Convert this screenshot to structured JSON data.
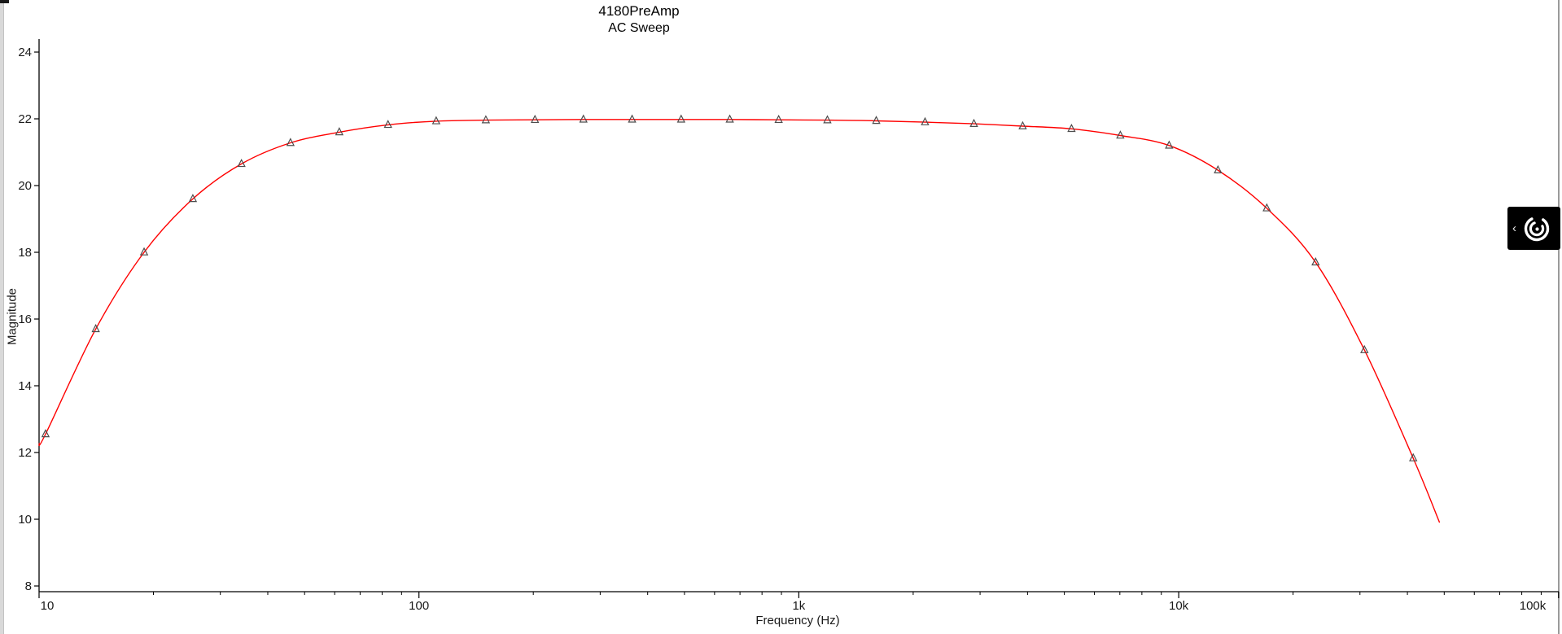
{
  "page": {
    "background": "#ffffff"
  },
  "decorations": {
    "left_edge_color": "#d9d9d9",
    "right_edge_color": "#9a9a9a",
    "topleft_sliver_color": "#1a1a1a"
  },
  "side_widget": {
    "chevron": "‹",
    "background": "#000000",
    "logo": "concentric-arcs"
  },
  "chart_data": {
    "type": "line",
    "title": "4180PreAmp",
    "subtitle": "AC Sweep",
    "xlabel": "Frequency (Hz)",
    "ylabel": "Magnitude",
    "x_scale": "log",
    "xlim": [
      10,
      100000
    ],
    "ylim": [
      8,
      24
    ],
    "grid": false,
    "legend": "none",
    "axis_color": "#000000",
    "tick_label_color": "#1a1a1a",
    "y_ticks": [
      24,
      22,
      20,
      18,
      16,
      14,
      12,
      10,
      8
    ],
    "x_major_ticks": [
      {
        "value": 10,
        "label": "10"
      },
      {
        "value": 100,
        "label": "100"
      },
      {
        "value": 1000,
        "label": "1k"
      },
      {
        "value": 10000,
        "label": "10k"
      },
      {
        "value": 100000,
        "label": "100k"
      }
    ],
    "series": [
      {
        "name": "Magnitude",
        "color": "#ff0000",
        "marker": "open-triangle",
        "marker_color": "#4d4d4d",
        "points_format": "frequency_hz, magnitude_db, has_marker",
        "points": [
          [
            10,
            12.27,
            0
          ],
          [
            10.4,
            12.55,
            1
          ],
          [
            14.1,
            15.7,
            1
          ],
          [
            18.9,
            18.0,
            1
          ],
          [
            25.4,
            19.6,
            1
          ],
          [
            34.1,
            20.65,
            1
          ],
          [
            45.9,
            21.28,
            1
          ],
          [
            61.7,
            21.6,
            1
          ],
          [
            82.9,
            21.82,
            1
          ],
          [
            111,
            21.93,
            1
          ],
          [
            150,
            21.96,
            1
          ],
          [
            202,
            21.97,
            1
          ],
          [
            271,
            21.98,
            1
          ],
          [
            364,
            21.98,
            1
          ],
          [
            490,
            21.98,
            1
          ],
          [
            658,
            21.98,
            1
          ],
          [
            885,
            21.97,
            1
          ],
          [
            1189,
            21.96,
            1
          ],
          [
            1599,
            21.94,
            1
          ],
          [
            2149,
            21.9,
            1
          ],
          [
            2890,
            21.85,
            1
          ],
          [
            3884,
            21.78,
            1
          ],
          [
            5222,
            21.7,
            1
          ],
          [
            7020,
            21.5,
            1
          ],
          [
            9437,
            21.2,
            1
          ],
          [
            12687,
            20.46,
            1
          ],
          [
            17056,
            19.32,
            1
          ],
          [
            22928,
            17.7,
            1
          ],
          [
            30823,
            15.07,
            1
          ],
          [
            41434,
            11.83,
            1
          ],
          [
            48600,
            9.9,
            0
          ]
        ]
      }
    ]
  }
}
